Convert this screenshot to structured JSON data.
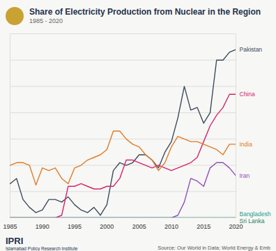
{
  "chart_data": {
    "type": "line",
    "title": "Share of Electricity Production from Nuclear in the Region",
    "subtitle": "1985 - 2020",
    "source": "Source: Our World in Data; World Energy & Emb",
    "logo_text": "IPRI",
    "organization": "Islamabad Policy Research Institute",
    "x": [
      1985,
      1986,
      1987,
      1988,
      1989,
      1990,
      1991,
      1992,
      1993,
      1994,
      1995,
      1996,
      1997,
      1998,
      1999,
      2000,
      2001,
      2002,
      2003,
      2004,
      2005,
      2006,
      2007,
      2008,
      2009,
      2010,
      2011,
      2012,
      2013,
      2014,
      2015,
      2016,
      2017,
      2018,
      2019,
      2020
    ],
    "series": [
      {
        "name": "Pakistan",
        "color": "#3d4a5c",
        "values": [
          1.3,
          1.5,
          0.7,
          0.4,
          0.2,
          0.3,
          0.7,
          0.7,
          0.6,
          0.8,
          0.5,
          0.3,
          0.2,
          0.4,
          0.1,
          0.5,
          1.8,
          2.1,
          2.0,
          2.1,
          2.4,
          2.4,
          2.2,
          1.9,
          2.5,
          2.9,
          3.8,
          5.0,
          4.1,
          4.2,
          3.6,
          4.0,
          6.0,
          6.0,
          6.3,
          6.4
        ]
      },
      {
        "name": "China",
        "color": "#d6246e",
        "values": [
          0,
          0,
          0,
          0,
          0,
          0,
          0,
          0,
          0.1,
          1.2,
          1.2,
          1.3,
          1.2,
          1.1,
          1.1,
          1.2,
          1.2,
          1.5,
          2.2,
          2.2,
          2.1,
          2.0,
          1.9,
          2.0,
          1.9,
          1.8,
          1.9,
          2.0,
          2.1,
          2.3,
          2.9,
          3.5,
          3.9,
          4.2,
          4.7,
          4.7
        ]
      },
      {
        "name": "India",
        "color": "#e07b26",
        "values": [
          2.0,
          2.1,
          2.1,
          2.0,
          1.25,
          1.9,
          1.8,
          1.9,
          1.5,
          1.3,
          1.9,
          2.0,
          2.2,
          2.3,
          2.4,
          2.6,
          3.3,
          3.3,
          3.0,
          2.8,
          2.7,
          2.4,
          2.2,
          1.8,
          2.1,
          2.7,
          3.1,
          3.0,
          2.9,
          2.9,
          2.8,
          2.7,
          2.6,
          2.4,
          2.8,
          2.8
        ]
      },
      {
        "name": "Iran",
        "color": "#8e4fb8",
        "values": [
          0,
          0,
          0,
          0,
          0,
          0,
          0,
          0,
          0,
          0,
          0,
          0,
          0,
          0,
          0,
          0,
          0,
          0,
          0,
          0,
          0,
          0,
          0,
          0,
          0,
          0,
          0.1,
          0.6,
          1.5,
          1.4,
          1.2,
          1.9,
          2.1,
          2.1,
          1.9,
          1.6
        ]
      },
      {
        "name": "Bangladesh",
        "color": "#1b9e8f",
        "values": [
          0,
          0,
          0,
          0,
          0,
          0,
          0,
          0,
          0,
          0,
          0,
          0,
          0,
          0,
          0,
          0,
          0,
          0,
          0,
          0,
          0,
          0,
          0,
          0,
          0,
          0,
          0,
          0,
          0,
          0,
          0,
          0,
          0,
          0,
          0,
          0
        ]
      },
      {
        "name": "Sri Lanka",
        "color": "#2a7f62",
        "values": [
          0,
          0,
          0,
          0,
          0,
          0,
          0,
          0,
          0,
          0,
          0,
          0,
          0,
          0,
          0,
          0,
          0,
          0,
          0,
          0,
          0,
          0,
          0,
          0,
          0,
          0,
          0,
          0,
          0,
          0,
          0,
          0,
          0,
          0,
          0,
          0
        ]
      }
    ],
    "xlim": [
      1985,
      2020
    ],
    "xticks": [
      1985,
      1990,
      1995,
      2000,
      2005,
      2010,
      2015,
      2020
    ],
    "ylim": [
      0,
      7
    ],
    "yticks": [
      0,
      1,
      2,
      3,
      4,
      5,
      6,
      7
    ],
    "grid": true,
    "tick_labels": "x"
  }
}
